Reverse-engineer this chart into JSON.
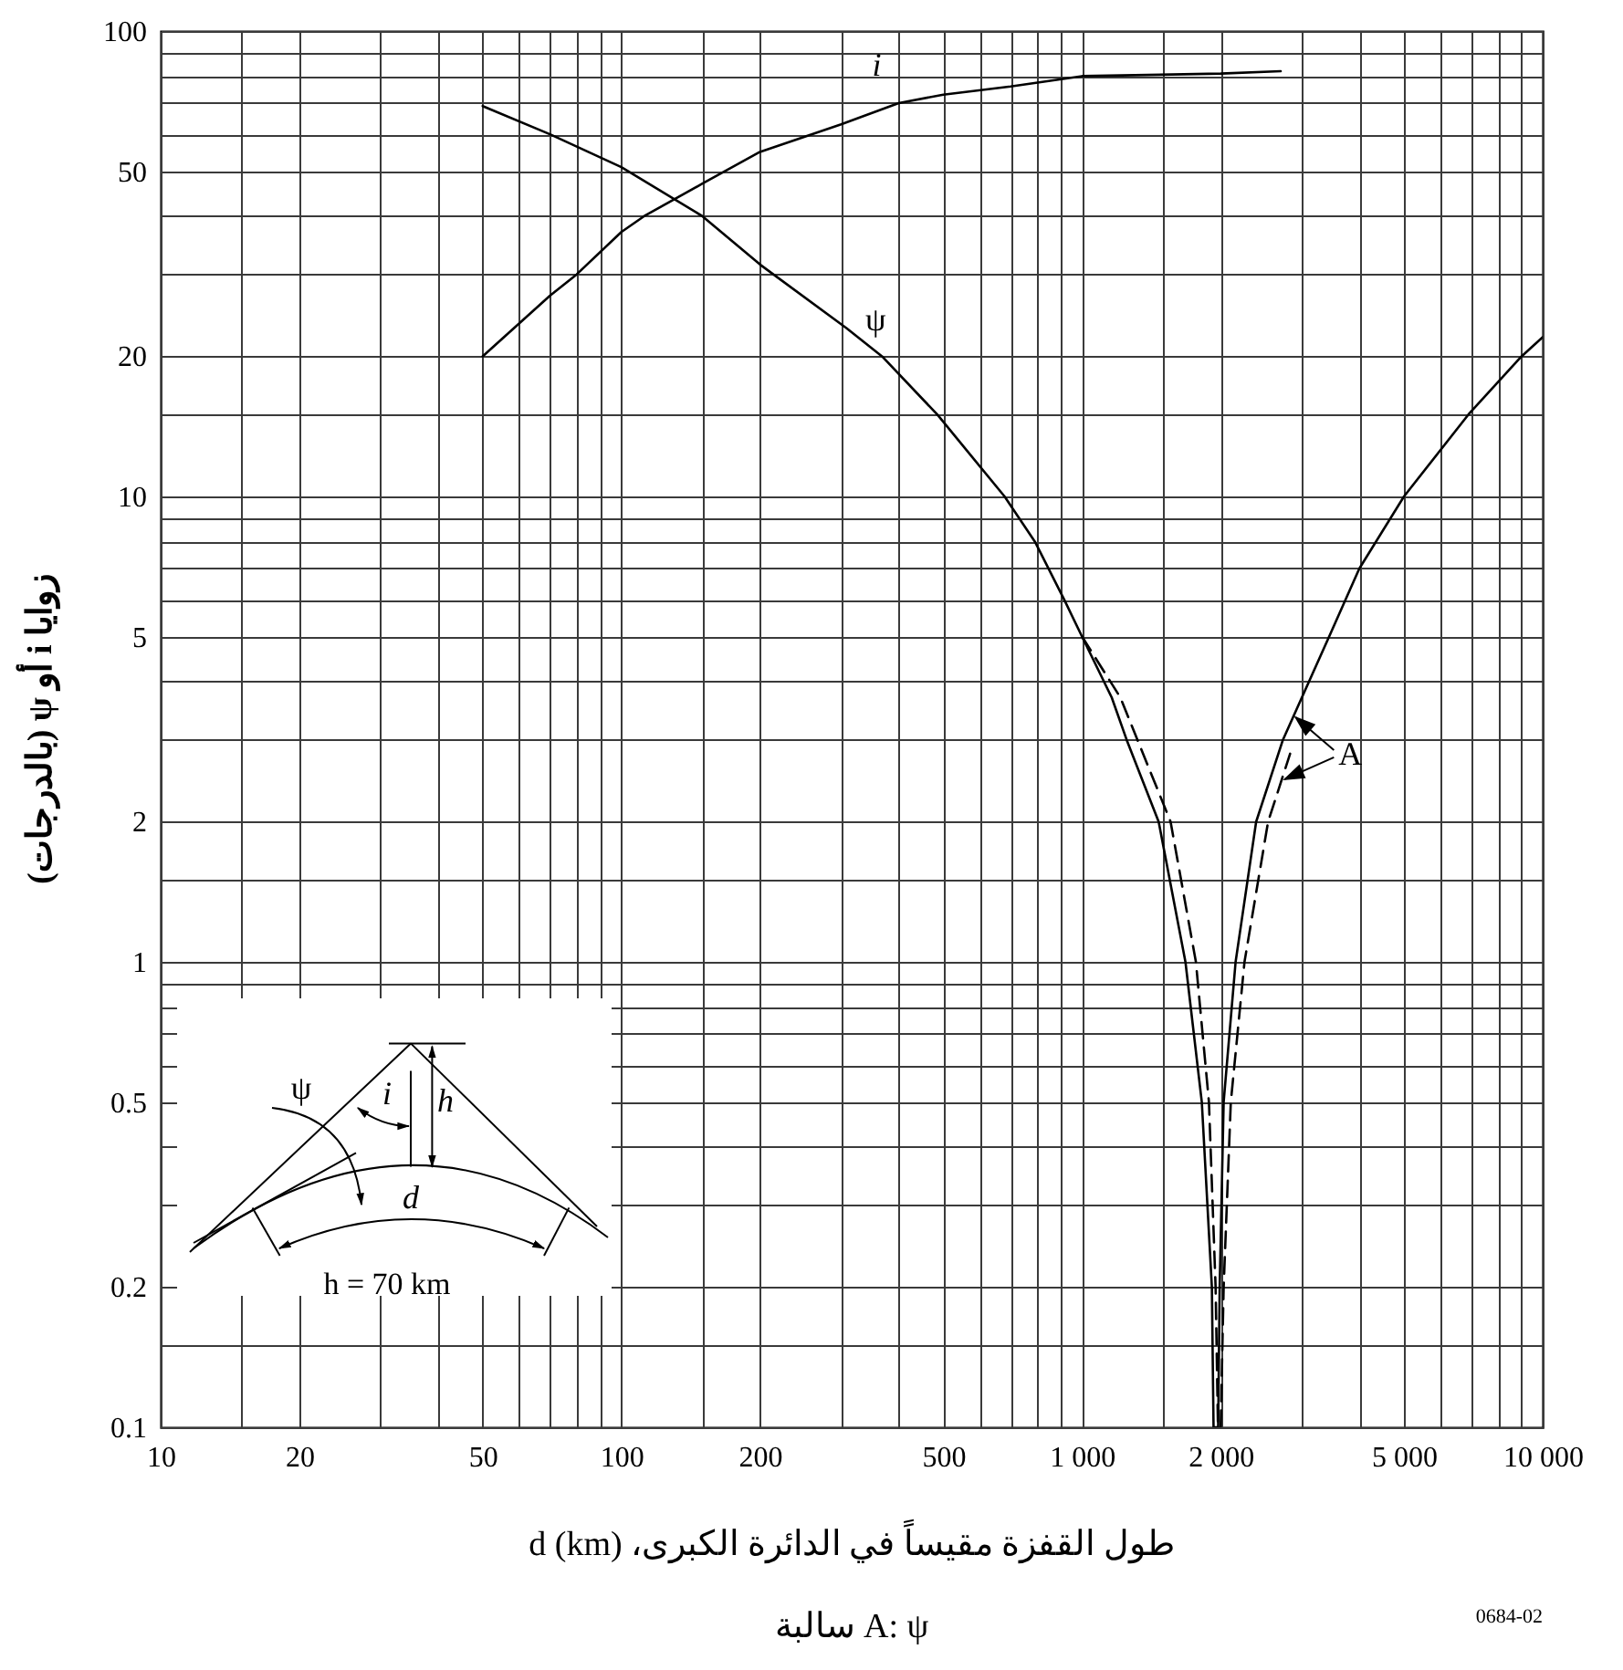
{
  "chart_data": {
    "type": "line",
    "xlabel": "طول القفزة مقيساً في الدائرة الكبرى، d (km)",
    "ylabel": "زوايا i أو ψ (بالدرجات)",
    "log": "xy",
    "grid": true,
    "xlim": [
      10,
      10000
    ],
    "ylim": [
      0.1,
      100
    ],
    "xticks": [
      10,
      {
        "value": 15,
        "label": null
      },
      20,
      {
        "value": 30,
        "label": null
      },
      {
        "value": 40,
        "label": null
      },
      50,
      {
        "value": 60,
        "label": null
      },
      {
        "value": 70,
        "label": null
      },
      {
        "value": 80,
        "label": null
      },
      {
        "value": 90,
        "label": null
      },
      100,
      {
        "value": 150,
        "label": null
      },
      200,
      {
        "value": 300,
        "label": null
      },
      {
        "value": 400,
        "label": null
      },
      500,
      {
        "value": 600,
        "label": null
      },
      {
        "value": 700,
        "label": null
      },
      {
        "value": 800,
        "label": null
      },
      {
        "value": 900,
        "label": null
      },
      {
        "value": 1000,
        "label": "1 000"
      },
      {
        "value": 1500,
        "label": null
      },
      {
        "value": 2000,
        "label": "2 000"
      },
      {
        "value": 3000,
        "label": null
      },
      {
        "value": 4000,
        "label": null
      },
      {
        "value": 5000,
        "label": "5 000"
      },
      {
        "value": 6000,
        "label": null
      },
      {
        "value": 7000,
        "label": null
      },
      {
        "value": 8000,
        "label": null
      },
      {
        "value": 9000,
        "label": null
      },
      {
        "value": 10000,
        "label": "10 000"
      }
    ],
    "yticks": [
      0.1,
      {
        "value": 0.15,
        "label": null
      },
      0.2,
      {
        "value": 0.3,
        "label": null
      },
      {
        "value": 0.4,
        "label": null
      },
      0.5,
      {
        "value": 0.6,
        "label": null
      },
      {
        "value": 0.7,
        "label": null
      },
      {
        "value": 0.8,
        "label": null
      },
      {
        "value": 0.9,
        "label": null
      },
      1,
      {
        "value": 1.5,
        "label": null
      },
      2,
      {
        "value": 3,
        "label": null
      },
      {
        "value": 4,
        "label": null
      },
      5,
      {
        "value": 6,
        "label": null
      },
      {
        "value": 7,
        "label": null
      },
      {
        "value": 8,
        "label": null
      },
      {
        "value": 9,
        "label": null
      },
      10,
      {
        "value": 15,
        "label": null
      },
      20,
      {
        "value": 30,
        "label": null
      },
      {
        "value": 40,
        "label": null
      },
      50,
      {
        "value": 60,
        "label": null
      },
      {
        "value": 70,
        "label": null
      },
      {
        "value": 80,
        "label": null
      },
      {
        "value": 90,
        "label": null
      },
      100
    ],
    "series": [
      {
        "name": "i",
        "color": "#000000",
        "line_style": "solid",
        "x": [
          50,
          70,
          80,
          100,
          112,
          150,
          200,
          300,
          400,
          500,
          700,
          1000,
          2000,
          2700
        ],
        "values": [
          20,
          27,
          30,
          37,
          40,
          47,
          55,
          63,
          70,
          73,
          76,
          80,
          81,
          82
        ]
      },
      {
        "name": "ψ",
        "color": "#000000",
        "line_style": "solid",
        "x": [
          50,
          70,
          100,
          150,
          200,
          308,
          368,
          485,
          679,
          790,
          915,
          1000,
          1160,
          1250,
          1467,
          1677,
          1820,
          1914,
          1930,
          1975,
          1990,
          2030,
          2155,
          2388,
          2730,
          3440,
          4000,
          5000,
          6900,
          9000,
          10000
        ],
        "values": [
          69,
          60,
          51,
          40,
          31.5,
          23,
          20,
          15,
          10,
          8,
          6,
          5,
          3.7,
          3,
          2,
          1,
          0.5,
          0.2,
          0.1,
          0.1,
          0.2,
          0.5,
          1,
          2,
          3,
          5,
          7,
          10,
          15,
          20,
          22
        ]
      },
      {
        "color": "#000000",
        "line_style": "dashed",
        "x": [
          1000,
          1211,
          1557,
          1767,
          1886,
          1950,
          1973,
          2000,
          2030,
          2104,
          2253,
          2535,
          2830
        ],
        "values": [
          5,
          3.7,
          2,
          1,
          0.5,
          0.2,
          0.1,
          0.1,
          0.2,
          0.5,
          1,
          2,
          2.8
        ]
      }
    ],
    "annotations": [
      "A",
      "ψ",
      "i",
      "h",
      "d",
      "h = 70 km",
      "A: ψ سالبة",
      "0684-02"
    ]
  }
}
